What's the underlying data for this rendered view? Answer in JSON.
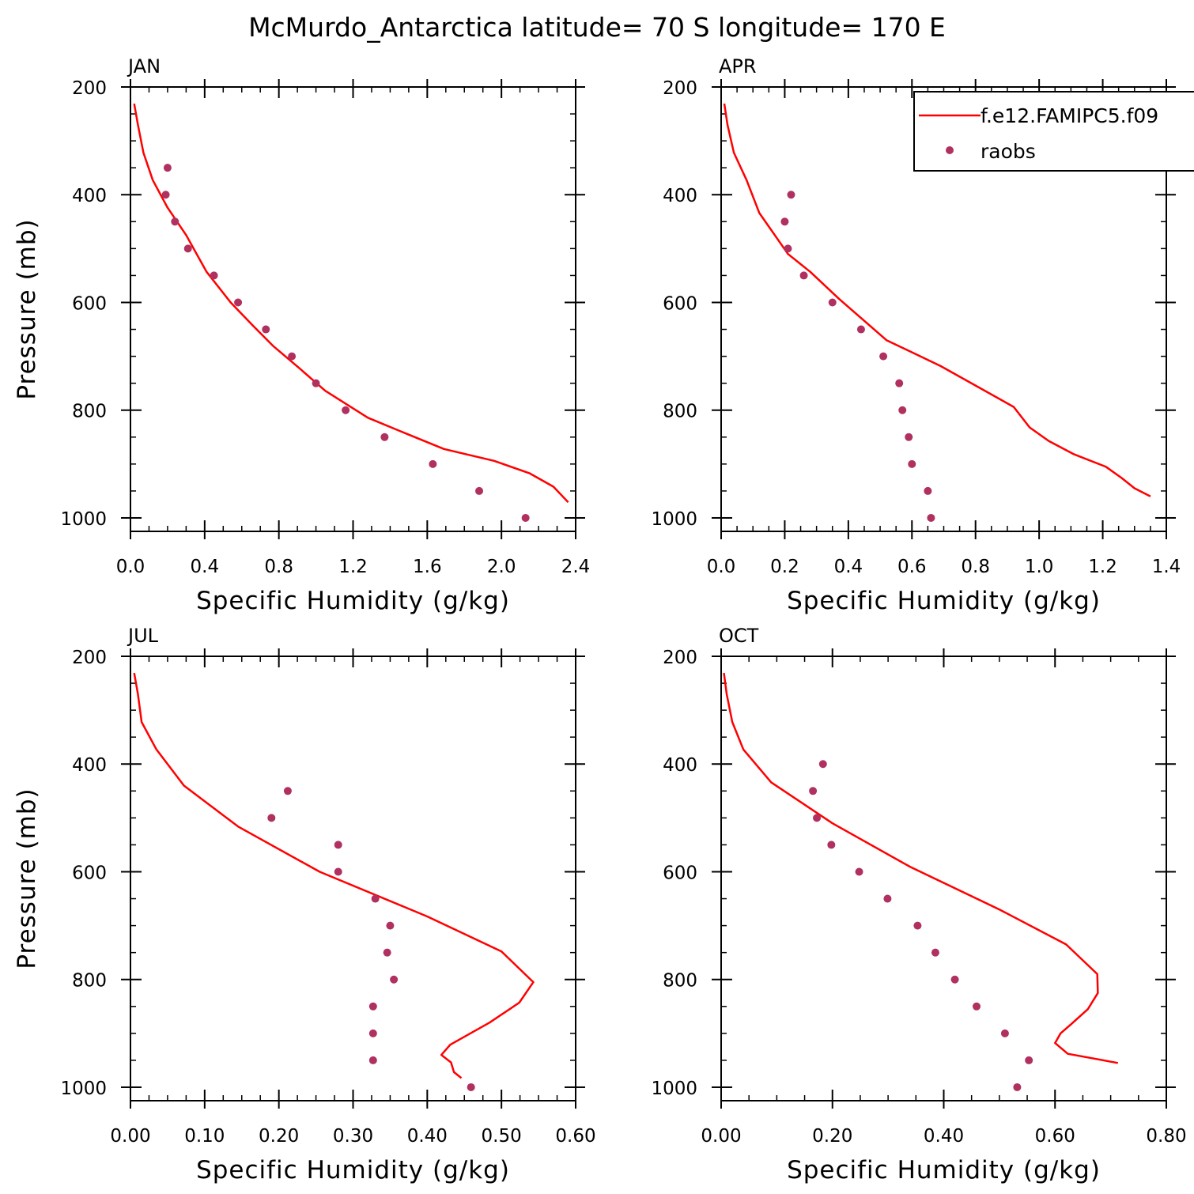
{
  "title": "McMurdo_Antarctica  latitude= 70 S longitude= 170 E",
  "colors": {
    "model": "#ff0000",
    "raobs": "#b03060",
    "axis": "#000000"
  },
  "legend": {
    "model_label": "f.e12.FAMIPC5.f09",
    "raobs_label": "raobs",
    "placement": "top-right of APR panel"
  },
  "chart_data": [
    {
      "type": "line",
      "panel": "JAN",
      "xlabel": "Specific Humidity (g/kg)",
      "ylabel": "Pressure (mb)",
      "xlim": [
        0,
        2.4
      ],
      "ylim": [
        1025,
        200
      ],
      "y_inverted": true,
      "xticks": [
        "0.0",
        "0.4",
        "0.8",
        "1.2",
        "1.6",
        "2.0",
        "2.4"
      ],
      "yticks": [
        "200",
        "400",
        "600",
        "800",
        "1000"
      ],
      "series": [
        {
          "name": "f.e12.FAMIPC5.f09",
          "kind": "line",
          "x": [
            0.02,
            0.04,
            0.07,
            0.12,
            0.2,
            0.3,
            0.41,
            0.54,
            0.66,
            0.77,
            0.91,
            1.05,
            1.28,
            1.49,
            1.69,
            1.96,
            2.15,
            2.28,
            2.36
          ],
          "y": [
            231,
            270,
            322,
            373,
            424,
            475,
            543,
            600,
            643,
            681,
            722,
            764,
            814,
            844,
            872,
            894,
            917,
            942,
            971
          ]
        },
        {
          "name": "raobs",
          "kind": "scatter",
          "x": [
            0.2,
            0.19,
            0.24,
            0.31,
            0.45,
            0.58,
            0.73,
            0.87,
            1.0,
            1.16,
            1.37,
            1.63,
            1.88,
            2.13
          ],
          "y": [
            350,
            400,
            450,
            500,
            550,
            600,
            650,
            700,
            750,
            800,
            850,
            900,
            950,
            1000
          ]
        }
      ]
    },
    {
      "type": "line",
      "panel": "APR",
      "xlabel": "Specific Humidity (g/kg)",
      "ylabel": "Pressure (mb)",
      "xlim": [
        0,
        1.4
      ],
      "ylim": [
        1025,
        200
      ],
      "y_inverted": true,
      "xticks": [
        "0.0",
        "0.2",
        "0.4",
        "0.6",
        "0.8",
        "1.0",
        "1.2",
        "1.4"
      ],
      "yticks": [
        "200",
        "400",
        "600",
        "800",
        "1000"
      ],
      "series": [
        {
          "name": "f.e12.FAMIPC5.f09",
          "kind": "line",
          "x": [
            0.01,
            0.02,
            0.04,
            0.08,
            0.12,
            0.21,
            0.28,
            0.37,
            0.52,
            0.69,
            0.92,
            0.97,
            1.03,
            1.11,
            1.21,
            1.26,
            1.3,
            1.35
          ],
          "y": [
            231,
            270,
            322,
            373,
            434,
            510,
            543,
            593,
            670,
            718,
            794,
            832,
            857,
            882,
            905,
            926,
            945,
            960
          ]
        },
        {
          "name": "raobs",
          "kind": "scatter",
          "x": [
            0.22,
            0.2,
            0.21,
            0.26,
            0.35,
            0.44,
            0.51,
            0.56,
            0.57,
            0.59,
            0.6,
            0.65,
            0.66
          ],
          "y": [
            400,
            450,
            500,
            550,
            600,
            650,
            700,
            750,
            800,
            850,
            900,
            950,
            1000
          ]
        }
      ]
    },
    {
      "type": "line",
      "panel": "JUL",
      "xlabel": "Specific Humidity (g/kg)",
      "ylabel": "Pressure (mb)",
      "xlim": [
        0,
        0.6
      ],
      "ylim": [
        1025,
        200
      ],
      "y_inverted": true,
      "xticks": [
        "0.00",
        "0.10",
        "0.20",
        "0.30",
        "0.40",
        "0.50",
        "0.60"
      ],
      "yticks": [
        "200",
        "400",
        "600",
        "800",
        "1000"
      ],
      "series": [
        {
          "name": "f.e12.FAMIPC5.f09",
          "kind": "line",
          "x": [
            0.005,
            0.01,
            0.015,
            0.035,
            0.072,
            0.145,
            0.255,
            0.4,
            0.5,
            0.543,
            0.524,
            0.484,
            0.431,
            0.419,
            0.432,
            0.436,
            0.446
          ],
          "y": [
            231,
            270,
            322,
            373,
            440,
            516,
            600,
            683,
            748,
            805,
            843,
            880,
            921,
            940,
            954,
            972,
            983
          ]
        },
        {
          "name": "raobs",
          "kind": "scatter",
          "x": [
            0.212,
            0.19,
            0.28,
            0.28,
            0.33,
            0.35,
            0.346,
            0.355,
            0.327,
            0.327,
            0.327,
            0.459
          ],
          "y": [
            450,
            500,
            550,
            600,
            650,
            700,
            750,
            800,
            850,
            900,
            950,
            1000
          ]
        }
      ]
    },
    {
      "type": "line",
      "panel": "OCT",
      "xlabel": "Specific Humidity (g/kg)",
      "ylabel": "Pressure (mb)",
      "xlim": [
        0,
        0.8
      ],
      "ylim": [
        1025,
        200
      ],
      "y_inverted": true,
      "xticks": [
        "0.00",
        "0.20",
        "0.40",
        "0.60",
        "0.80"
      ],
      "yticks": [
        "200",
        "400",
        "600",
        "800",
        "1000"
      ],
      "series": [
        {
          "name": "f.e12.FAMIPC5.f09",
          "kind": "line",
          "x": [
            0.005,
            0.01,
            0.02,
            0.04,
            0.09,
            0.2,
            0.34,
            0.5,
            0.62,
            0.676,
            0.677,
            0.659,
            0.63,
            0.61,
            0.6,
            0.623,
            0.713
          ],
          "y": [
            231,
            270,
            322,
            373,
            434,
            510,
            591,
            670,
            735,
            790,
            825,
            855,
            882,
            900,
            918,
            938,
            955
          ]
        },
        {
          "name": "raobs",
          "kind": "scatter",
          "x": [
            0.183,
            0.165,
            0.172,
            0.198,
            0.248,
            0.299,
            0.353,
            0.385,
            0.42,
            0.459,
            0.51,
            0.553,
            0.532
          ],
          "y": [
            400,
            450,
            500,
            550,
            600,
            650,
            700,
            750,
            800,
            850,
            900,
            950,
            1000
          ]
        }
      ]
    }
  ]
}
